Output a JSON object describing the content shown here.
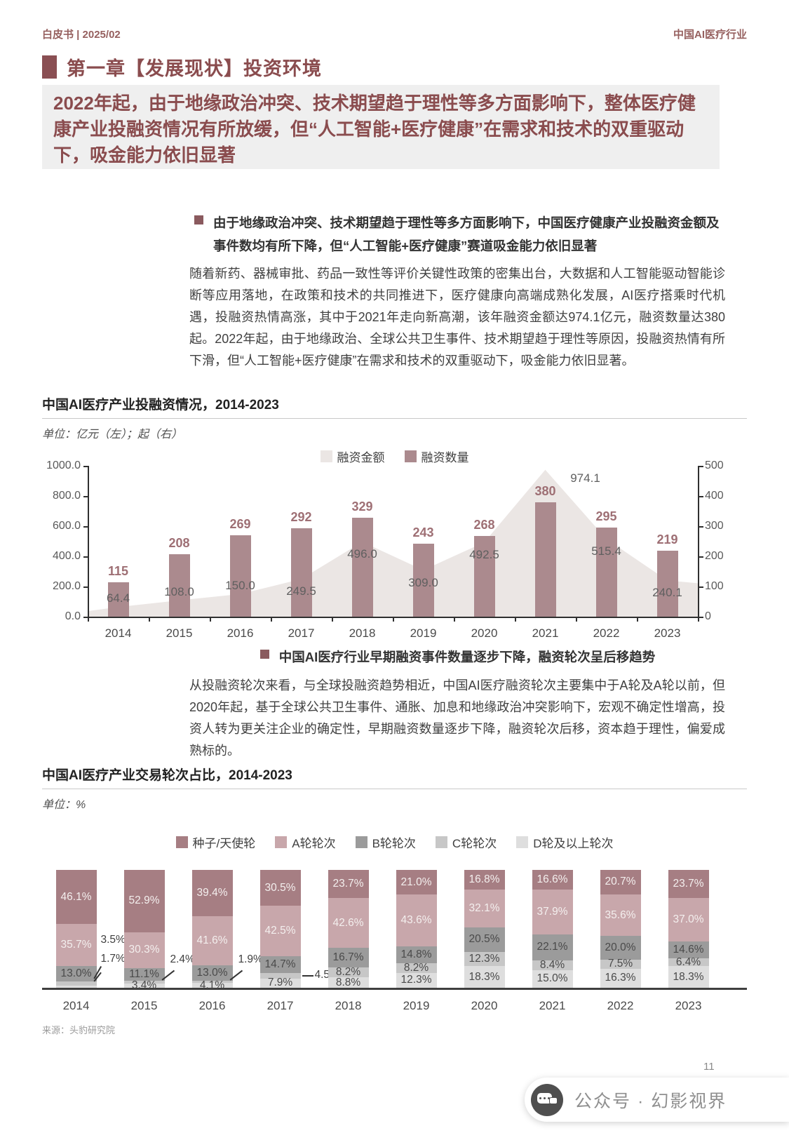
{
  "header": {
    "doc_label": "白皮书 | 2025/02",
    "industry_label": "中国AI医疗行业"
  },
  "chapter": {
    "title": "第一章【发展现状】投资环境"
  },
  "highlight": "2022年起，由于地缘政治冲突、技术期望趋于理性等多方面影响下，整体医疗健康产业投融资情况有所放缓，但“人工智能+医疗健康”在需求和技术的双重驱动下，吸金能力依旧显著",
  "sections": [
    {
      "bullet": "由于地缘政治冲突、技术期望趋于理性等多方面影响下，中国医疗健康产业投融资金额及事件数均有所下降，但“人工智能+医疗健康”赛道吸金能力依旧显著",
      "paragraph": "随着新药、器械审批、药品一致性等评价关键性政策的密集出台，大数据和人工智能驱动智能诊断等应用落地，在政策和技术的共同推进下，医疗健康向高端成熟化发展，AI医疗搭乘时代机遇，投融资热情高涨，其中于2021年走向新高潮，该年融资金额达974.1亿元，融资数量达380起。2022年起，由于地缘政治、全球公共卫生事件、技术期望趋于理性等原因，投融资热情有所下滑，但“人工智能+医疗健康”在需求和技术的双重驱动下，吸金能力依旧显著。"
    },
    {
      "bullet": "中国AI医疗行业早期融资事件数量逐步下降，融资轮次呈后移趋势",
      "paragraph": "从投融资轮次来看，与全球投融资趋势相近，中国AI医疗融资轮次主要集中于A轮及A轮以前，但2020年起，基于全球公共卫生事件、通胀、加息和地缘政治冲突影响下，宏观不确定性增高，投资人转为更关注企业的确定性，早期融资数量逐步下降，融资轮次后移，资本趋于理性，偏爱成熟标的。"
    }
  ],
  "chart_data": [
    {
      "type": "combo bar+area",
      "title": "中国AI医疗产业投融资情况，2014-2023",
      "unit_label": "单位：亿元（左）；起（右）",
      "categories": [
        "2014",
        "2015",
        "2016",
        "2017",
        "2018",
        "2019",
        "2020",
        "2021",
        "2022",
        "2023"
      ],
      "series": [
        {
          "name": "融资金额",
          "chart": "area",
          "axis": "left",
          "color": "#ebe6e4",
          "values": [
            64.4,
            108.0,
            150.0,
            249.5,
            496.0,
            309.0,
            492.5,
            974.1,
            515.4,
            240.1
          ]
        },
        {
          "name": "融资数量",
          "chart": "bar",
          "axis": "right",
          "color": "#ab8a8e",
          "values": [
            115,
            208,
            269,
            292,
            329,
            243,
            268,
            380,
            295,
            219
          ]
        }
      ],
      "left_axis": {
        "max": 1000,
        "ticks": [
          "1000.0",
          "800.0",
          "600.0",
          "400.0",
          "200.0",
          "0.0"
        ]
      },
      "right_axis": {
        "max": 500,
        "ticks": [
          "500",
          "400",
          "300",
          "200",
          "100",
          "0"
        ]
      },
      "legend_position": "top",
      "grid": false
    },
    {
      "type": "stacked-bar",
      "title": "中国AI医疗产业交易轮次占比，2014-2023",
      "unit_label": "单位：%",
      "categories": [
        "2014",
        "2015",
        "2016",
        "2017",
        "2018",
        "2019",
        "2020",
        "2021",
        "2022",
        "2023"
      ],
      "ylim": [
        0,
        100
      ],
      "series": [
        {
          "name": "种子/天使轮",
          "color": "#a67e83",
          "values": [
            46.1,
            52.9,
            39.4,
            30.5,
            23.7,
            21.0,
            16.8,
            16.6,
            20.7,
            23.7
          ]
        },
        {
          "name": "A轮轮次",
          "color": "#c8a7ab",
          "values": [
            35.7,
            30.3,
            41.6,
            42.5,
            42.6,
            43.6,
            32.1,
            37.9,
            35.6,
            37.0
          ]
        },
        {
          "name": "B轮轮次",
          "color": "#9b9b9b",
          "values": [
            13.0,
            11.1,
            13.0,
            14.7,
            16.7,
            14.8,
            20.5,
            22.1,
            20.0,
            14.6
          ]
        },
        {
          "name": "C轮轮次",
          "color": "#c7c7c7",
          "values": [
            3.5,
            2.4,
            1.9,
            4.5,
            8.2,
            8.2,
            12.3,
            8.4,
            7.5,
            6.4
          ]
        },
        {
          "name": "D轮及以上轮次",
          "color": "#dedede",
          "values": [
            1.7,
            3.4,
            4.1,
            7.9,
            8.8,
            12.3,
            18.3,
            15.0,
            16.3,
            18.3
          ]
        }
      ],
      "legend_position": "top",
      "grid": false
    }
  ],
  "source": "来源：头豹研究院",
  "page_number": "11",
  "watermark": "公众号 · 幻影视界",
  "colors": {
    "accent_maroon": "#8a4c4e",
    "bar_maroon": "#ab8a8e",
    "area_fill": "#ebe6e4",
    "panel_bg": "#efefef",
    "body_text": "#404040"
  }
}
